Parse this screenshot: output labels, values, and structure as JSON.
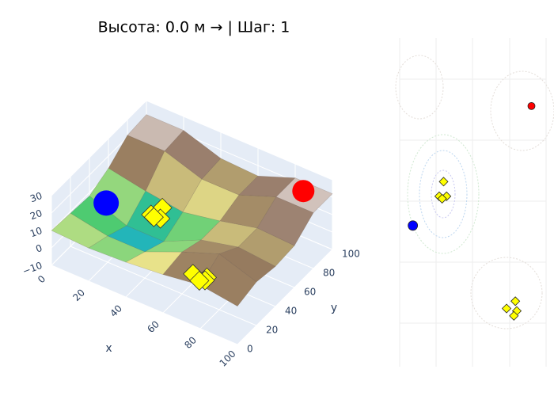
{
  "chart_data": [
    {
      "type": "surface3d",
      "title": "Высота: 0.0 м → | Шаг: 1",
      "x_title": "x",
      "y_title": "y",
      "x": [
        0,
        20,
        40,
        60,
        80,
        100
      ],
      "y": [
        0,
        20,
        40,
        60,
        80,
        100
      ],
      "z": [
        [
          10,
          9,
          8,
          13,
          21,
          22
        ],
        [
          9,
          5,
          0,
          9,
          21,
          22
        ],
        [
          10,
          5,
          0,
          6,
          14,
          15
        ],
        [
          12,
          14,
          10,
          10,
          14,
          14
        ],
        [
          15,
          22,
          15,
          15,
          22,
          22
        ],
        [
          12,
          15,
          13,
          14,
          22,
          22
        ]
      ],
      "xlim": [
        0,
        100
      ],
      "ylim": [
        0,
        100
      ],
      "zlim": [
        -10,
        30
      ],
      "xticks": [
        0,
        20,
        40,
        60,
        80,
        100
      ],
      "yticks": [
        0,
        20,
        40,
        60,
        80,
        100
      ],
      "zticks": [
        {
          "value": -10,
          "label": "−10"
        },
        0,
        10,
        20,
        30
      ],
      "series": [
        {
          "color": "#0000ff",
          "x": [
            9
          ],
          "y": [
            40
          ],
          "z": [
            8
          ]
        },
        {
          "color": "#ff0000",
          "x": [
            90
          ],
          "y": [
            89
          ],
          "z": [
            25
          ]
        },
        {
          "color": "#ffff00",
          "x": [
            30,
            27,
            32,
            29,
            79,
            73,
            80,
            78
          ],
          "y": [
            58,
            52,
            52,
            51,
            9,
            6,
            5,
            3
          ],
          "z": [
            5,
            3,
            3,
            3,
            14,
            15,
            15,
            15
          ]
        }
      ]
    },
    {
      "type": "contour",
      "xlim": [
        0,
        100
      ],
      "ylim": [
        0,
        100
      ]
    }
  ]
}
